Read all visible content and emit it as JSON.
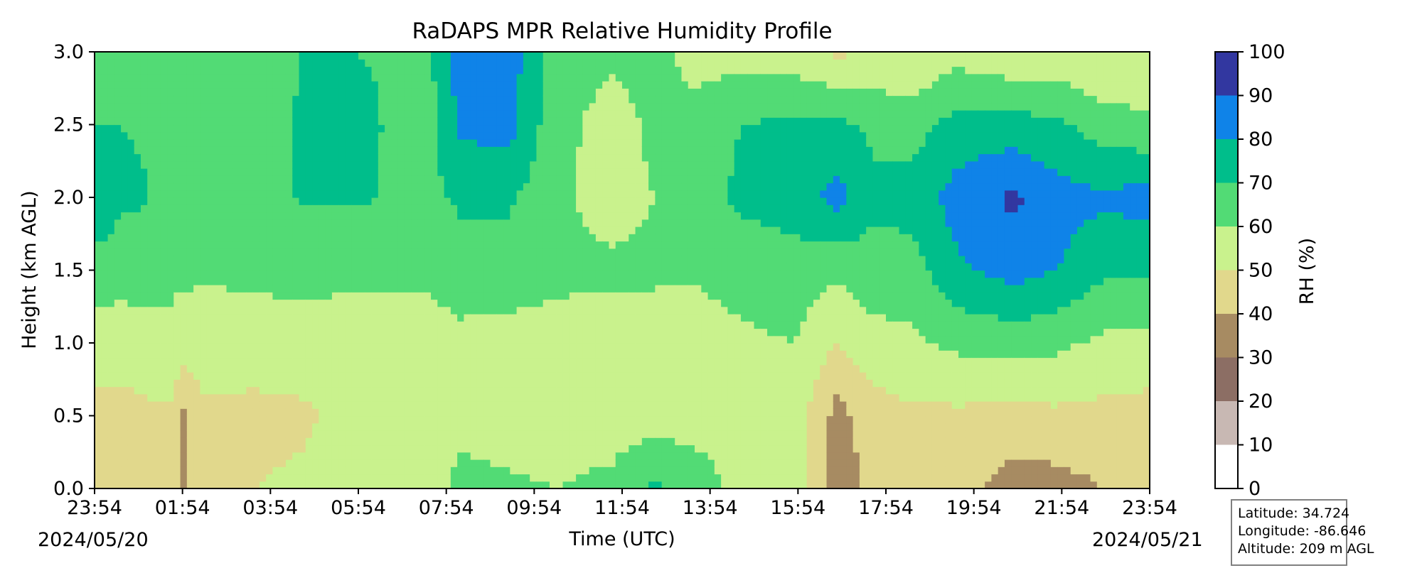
{
  "chart_data": {
    "type": "heatmap",
    "title": "RaDAPS MPR Relative Humidity Profile",
    "xlabel": "Time (UTC)",
    "ylabel": "Height (km AGL)",
    "xlim": [
      -0.1,
      23.9
    ],
    "ylim": [
      0,
      3.0
    ],
    "x_ticks": [
      "23:54",
      "01:54",
      "03:54",
      "05:54",
      "07:54",
      "09:54",
      "11:54",
      "13:54",
      "15:54",
      "17:54",
      "19:54",
      "21:54",
      "23:54"
    ],
    "x_tick_hours": [
      -0.1,
      1.9,
      3.9,
      5.9,
      7.9,
      9.9,
      11.9,
      13.9,
      15.9,
      17.9,
      19.9,
      21.9,
      23.9
    ],
    "y_ticks": [
      "0.0",
      "0.5",
      "1.0",
      "1.5",
      "2.0",
      "2.5",
      "3.0"
    ],
    "y_tick_values": [
      0,
      0.5,
      1.0,
      1.5,
      2.0,
      2.5,
      3.0
    ],
    "start_date": "2024/05/20",
    "end_date": "2024/05/21",
    "colorbar": {
      "label": "RH (%)",
      "ticks": [
        "0",
        "10",
        "20",
        "30",
        "40",
        "50",
        "60",
        "70",
        "80",
        "90",
        "100"
      ],
      "levels": [
        0,
        10,
        20,
        30,
        40,
        50,
        60,
        70,
        80,
        90,
        100
      ],
      "colors": [
        "#ffffff",
        "#c8b8b3",
        "#8c6e64",
        "#a78b62",
        "#e1d88c",
        "#c9f28d",
        "#52db75",
        "#00be8b",
        "#0f83e8",
        "#3237a0"
      ]
    },
    "rh_profile_columns": [
      {
        "hour": -0.1,
        "rh": [
          45,
          46,
          56,
          62,
          74,
          70,
          66
        ]
      },
      {
        "hour": 0.0,
        "rh": [
          45,
          46,
          56,
          64,
          82,
          70,
          66
        ]
      },
      {
        "hour": 0.5,
        "rh": [
          45,
          46,
          56,
          63,
          72,
          70,
          66
        ]
      },
      {
        "hour": 1.0,
        "rh": [
          46,
          47,
          57,
          63,
          71,
          69,
          66
        ]
      },
      {
        "hour": 1.6,
        "rh": [
          48,
          49,
          58,
          62,
          67,
          65,
          62
        ]
      },
      {
        "hour": 1.9,
        "rh": [
          36,
          38,
          55,
          62,
          62,
          62,
          60
        ]
      },
      {
        "hour": 2.4,
        "rh": [
          50,
          48,
          56,
          61,
          62,
          62,
          60
        ]
      },
      {
        "hour": 3.5,
        "rh": [
          50,
          47,
          55,
          62,
          62,
          62,
          60
        ]
      },
      {
        "hour": 4.6,
        "rh": [
          52,
          48,
          56,
          63,
          71,
          72,
          70
        ]
      },
      {
        "hour": 5.9,
        "rh": [
          56,
          54,
          55,
          62,
          71,
          72,
          70
        ]
      },
      {
        "hour": 7.5,
        "rh": [
          57,
          54,
          56,
          62,
          67,
          66,
          68
        ]
      },
      {
        "hour": 8.2,
        "rh": [
          62,
          58,
          58,
          64,
          72,
          82,
          84
        ]
      },
      {
        "hour": 9.3,
        "rh": [
          61,
          57,
          57,
          64,
          72,
          84,
          86
        ]
      },
      {
        "hour": 10.4,
        "rh": [
          60,
          57,
          57,
          62,
          62,
          63,
          64
        ]
      },
      {
        "hour": 11.7,
        "rh": [
          62,
          56,
          54,
          62,
          56,
          56,
          62
        ]
      },
      {
        "hour": 12.6,
        "rh": [
          72,
          55,
          54,
          62,
          60,
          62,
          63
        ]
      },
      {
        "hour": 13.6,
        "rh": [
          66,
          55,
          56,
          61,
          66,
          64,
          56
        ]
      },
      {
        "hour": 14.6,
        "rh": [
          56,
          55,
          58,
          64,
          72,
          70,
          56
        ]
      },
      {
        "hour": 15.8,
        "rh": [
          57,
          56,
          60,
          66,
          74,
          72,
          55
        ]
      },
      {
        "hour": 16.8,
        "rh": [
          35,
          36,
          50,
          62,
          84,
          72,
          48
        ]
      },
      {
        "hour": 17.6,
        "rh": [
          42,
          46,
          56,
          66,
          72,
          68,
          52
        ]
      },
      {
        "hour": 18.5,
        "rh": [
          44,
          48,
          58,
          66,
          74,
          66,
          50
        ]
      },
      {
        "hour": 19.5,
        "rh": [
          44,
          48,
          62,
          78,
          84,
          74,
          56
        ]
      },
      {
        "hour": 20.8,
        "rh": [
          35,
          47,
          64,
          84,
          92,
          74,
          52
        ]
      },
      {
        "hour": 21.8,
        "rh": [
          36,
          48,
          62,
          80,
          84,
          72,
          52
        ]
      },
      {
        "hour": 22.8,
        "rh": [
          40,
          47,
          58,
          72,
          82,
          65,
          50
        ]
      },
      {
        "hour": 23.9,
        "rh": [
          40,
          46,
          57,
          71,
          84,
          62,
          50
        ]
      }
    ],
    "profile_heights_km": [
      0.0,
      0.5,
      1.0,
      1.5,
      2.0,
      2.5,
      3.0
    ]
  },
  "station": {
    "latitude": "Latitude: 34.724",
    "longitude": "Longitude: -86.646",
    "altitude": "Altitude: 209 m AGL"
  }
}
